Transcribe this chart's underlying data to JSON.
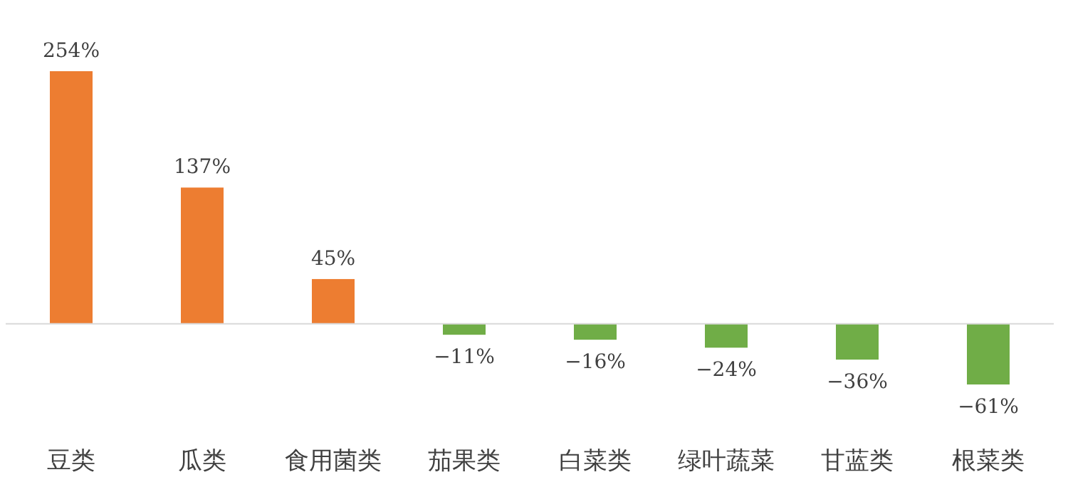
{
  "chart_data": {
    "type": "bar",
    "categories": [
      "豆类",
      "瓜类",
      "食用菌类",
      "茄果类",
      "白菜类",
      "绿叶蔬菜",
      "甘蓝类",
      "根菜类"
    ],
    "values": [
      254,
      137,
      45,
      -11,
      -16,
      -24,
      -36,
      -61
    ],
    "colors": [
      "#ed7d31",
      "#ed7d31",
      "#ed7d31",
      "#70ad47",
      "#70ad47",
      "#70ad47",
      "#70ad47",
      "#70ad47"
    ],
    "value_labels": [
      "254%",
      "137%",
      "45%",
      "−11%",
      "−16%",
      "−24%",
      "−36%",
      "−61%"
    ]
  }
}
